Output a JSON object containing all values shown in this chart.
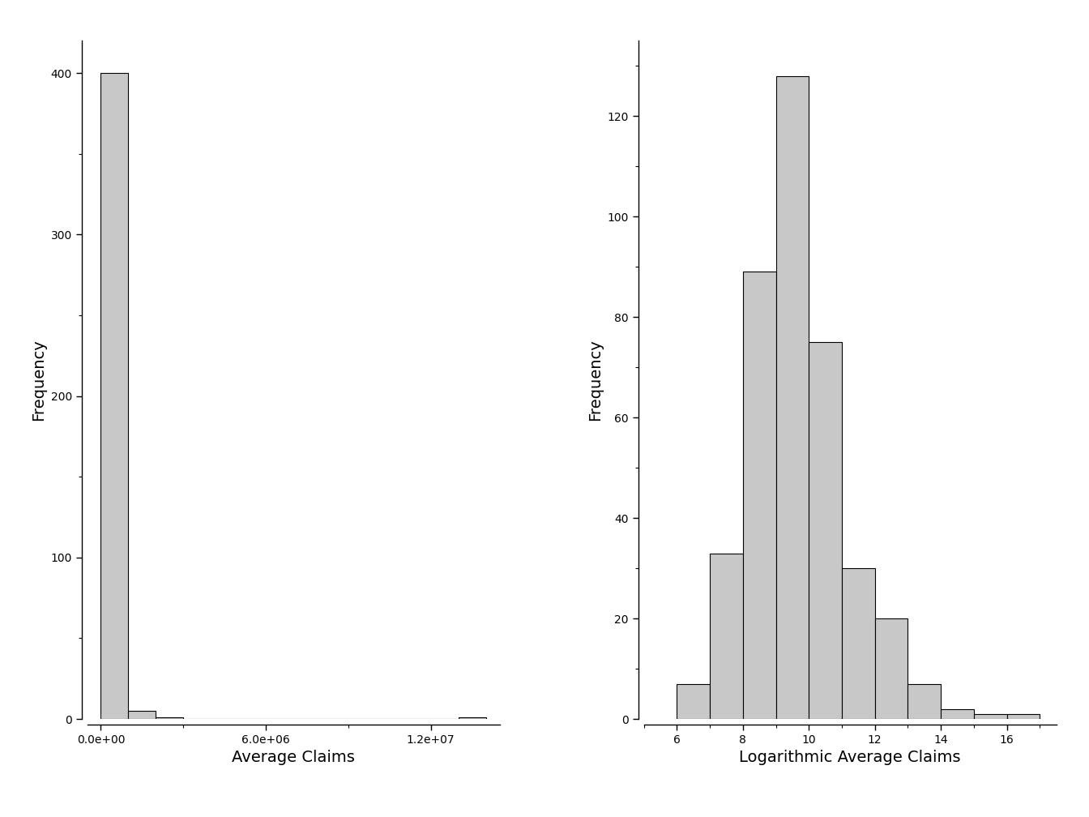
{
  "left_plot": {
    "xlabel": "Average Claims",
    "ylabel": "Frequency",
    "xlim": [
      -500000,
      14500000
    ],
    "ylim": [
      0,
      420
    ],
    "yticks": [
      0,
      100,
      200,
      300,
      400
    ],
    "xticks": [
      0,
      6000000,
      12000000
    ],
    "xticklabels": [
      "0.0e+00",
      "6.0e+06",
      "1.2e+07"
    ],
    "bar_heights": [
      400,
      5,
      1,
      0,
      0,
      0,
      0,
      0,
      0,
      0,
      0,
      0,
      0,
      1
    ],
    "bin_edges": [
      0,
      1000000,
      2000000,
      3000000,
      4000000,
      5000000,
      6000000,
      7000000,
      8000000,
      9000000,
      10000000,
      11000000,
      12000000,
      13000000,
      14000000
    ],
    "bin_width": 1000000
  },
  "right_plot": {
    "xlabel": "Logarithmic Average Claims",
    "ylabel": "Frequency",
    "xlim": [
      5,
      17.5
    ],
    "ylim": [
      0,
      135
    ],
    "yticks": [
      0,
      20,
      40,
      60,
      80,
      100,
      120
    ],
    "xticks": [
      6,
      8,
      10,
      12,
      14,
      16
    ],
    "bar_heights": [
      7,
      33,
      89,
      128,
      75,
      30,
      20,
      7,
      2,
      1,
      1
    ],
    "bin_start": 6,
    "bin_width": 1
  },
  "bar_color": "#c8c8c8",
  "bar_edgecolor": "#000000",
  "bg_color": "#ffffff",
  "tick_fontsize": 13,
  "label_fontsize": 14
}
